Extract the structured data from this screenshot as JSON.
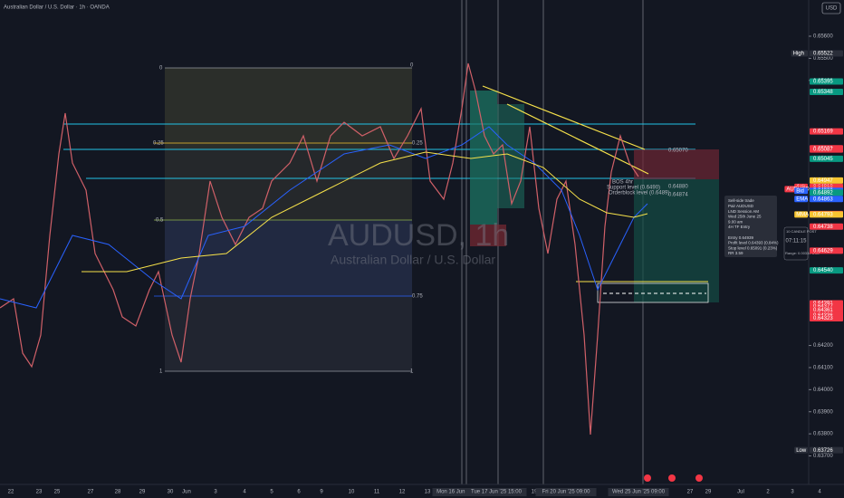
{
  "header": {
    "title": "Australian Dollar / U.S. Dollar · 1h · OANDA",
    "currency": "USD"
  },
  "watermark": {
    "symbol": "AUDUSD, 1h",
    "name": "Australian Dollar / U.S. Dollar"
  },
  "price_axis": {
    "ylim": [
      0.63571,
      0.65764
    ],
    "ticks": [
      {
        "value": 0.656,
        "label": "0.65600"
      },
      {
        "value": 0.655,
        "label": "0.65500"
      },
      {
        "value": 0.654,
        "label": "0.65400"
      },
      {
        "value": 0.642,
        "label": "0.64200"
      },
      {
        "value": 0.641,
        "label": "0.64100"
      },
      {
        "value": 0.64,
        "label": "0.64000"
      },
      {
        "value": 0.639,
        "label": "0.63900"
      },
      {
        "value": 0.638,
        "label": "0.63800"
      },
      {
        "value": 0.637,
        "label": "0.63700"
      }
    ],
    "tags": [
      {
        "value": 0.65522,
        "label": "0.65522",
        "color": "#2a2e39",
        "side": "High"
      },
      {
        "value": 0.65395,
        "label": "0.65395",
        "color": "#089981"
      },
      {
        "value": 0.65348,
        "label": "0.65348",
        "color": "#089981"
      },
      {
        "value": 0.65169,
        "label": "0.65169",
        "color": "#f23645"
      },
      {
        "value": 0.65093,
        "label": "0.65093",
        "color": "#f23645"
      },
      {
        "value": 0.65087,
        "label": "0.65087",
        "color": "#f23645"
      },
      {
        "value": 0.65045,
        "label": "0.65045",
        "color": "#089981"
      },
      {
        "value": 0.64947,
        "label": "0.64947",
        "color": "#f7c531"
      },
      {
        "value": 0.64918,
        "label": "0.64918",
        "color": "#f23645",
        "side": "Ask"
      },
      {
        "value": 0.6491,
        "label": "0.64910",
        "color": "#f23645"
      },
      {
        "value": 0.64908,
        "label": "0.64908",
        "color": "#f23645",
        "side": "AUDUSD"
      },
      {
        "value": 0.649,
        "label": "0.64900",
        "color": "#2962ff",
        "side": "Bid"
      },
      {
        "value": 0.64892,
        "label": "0.64892",
        "color": "#089981"
      },
      {
        "value": 0.64863,
        "label": "0.64863",
        "color": "#2962ff",
        "side": "EMA"
      },
      {
        "value": 0.64795,
        "label": "0.64795",
        "color": "#f23645"
      },
      {
        "value": 0.64793,
        "label": "0.64793",
        "color": "#f7c531",
        "side": "MMA"
      },
      {
        "value": 0.64738,
        "label": "0.64738",
        "color": "#f23645"
      },
      {
        "value": 0.64629,
        "label": "0.64629",
        "color": "#f23645"
      },
      {
        "value": 0.6454,
        "label": "0.64540",
        "color": "#089981"
      },
      {
        "value": 0.64391,
        "label": "0.64391",
        "color": "#f23645"
      },
      {
        "value": 0.64377,
        "label": "0.64377",
        "color": "#f23645"
      },
      {
        "value": 0.64361,
        "label": "0.64361",
        "color": "#f23645"
      },
      {
        "value": 0.64338,
        "label": "0.64338",
        "color": "#f23645"
      },
      {
        "value": 0.64336,
        "label": "0.64336",
        "color": "#f23645"
      },
      {
        "value": 0.64323,
        "label": "0.64323",
        "color": "#f23645"
      },
      {
        "value": 0.63726,
        "label": "0.63726",
        "color": "#2a2e39",
        "side": "Low"
      }
    ]
  },
  "time_axis": [
    "22",
    "23",
    "25",
    "27",
    "28",
    "29",
    "30",
    "Jun",
    "3",
    "4",
    "5",
    "6",
    "9",
    "10",
    "11",
    "12",
    "13",
    "Mon 16 Jun '25  0",
    "Tue 17 Jun '25  15:00",
    "19",
    "Fri 20 Jun '25  09:00",
    "24",
    "Wed 25 Jun '25  09:00",
    "27",
    "29",
    "Jul",
    "2",
    "3",
    "4"
  ],
  "fib": {
    "top": "0",
    "quarter": "0.25",
    "half": "0.5",
    "three_quarter": "0.75",
    "bottom": "1"
  },
  "annotations": {
    "bos": "BOS 4hr",
    "support": "Support level (0.6490)",
    "orderblock": "Orderblock level (0.6489)",
    "stop_price": "0.65070",
    "entry_price": "0.64880",
    "target_price": "0.64874"
  },
  "trade_note": [
    "Sell-side trade",
    "Pair AUDUSD",
    "LND Session AM",
    "Wed 25th June 25",
    "9.00 am",
    "4H TF Entry",
    "",
    "Entry 0.64939",
    "Profit level 0.64393 (0.84%)",
    "Stop level 0.65091 (0.23%)",
    "RR 3.59"
  ],
  "countdown": {
    "title": "10 CANDLE POST",
    "time": "07:11:15",
    "range": "Range: 0.00334 USD"
  }
}
